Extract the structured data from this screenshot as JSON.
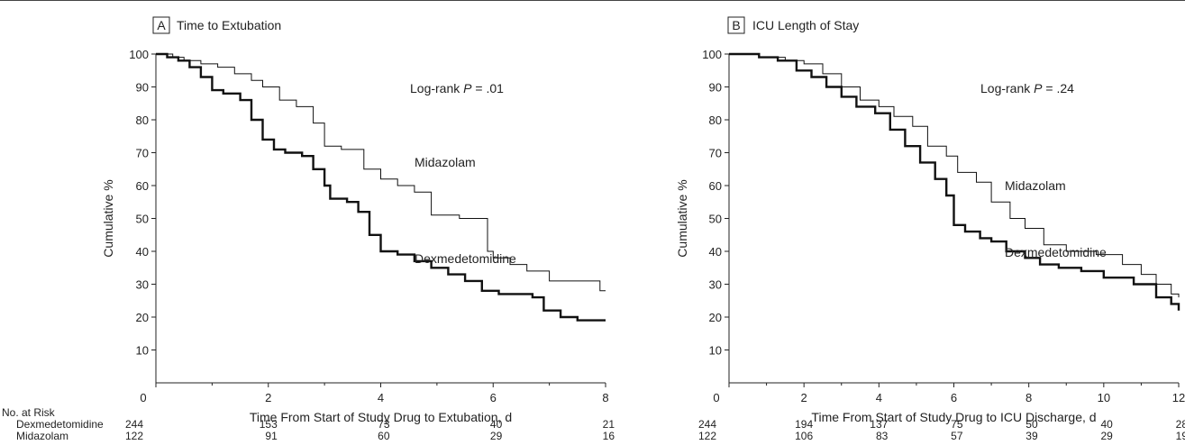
{
  "chart_data": [
    {
      "type": "line",
      "panel_letter": "A",
      "title": "Time to Extubation",
      "annotation_prefix": "Log-rank",
      "annotation_p": "P",
      "annotation_value": " = .01",
      "xlabel": "Time From Start of Study Drug to Extubation, d",
      "ylabel": "Cumulative %",
      "xlim": [
        0,
        8
      ],
      "ylim": [
        0,
        100
      ],
      "x_ticks": [
        0,
        2,
        4,
        6,
        8
      ],
      "y_ticks": [
        10,
        20,
        30,
        40,
        50,
        60,
        70,
        80,
        90,
        100
      ],
      "grid": false,
      "step": true,
      "series": [
        {
          "name": "Midazolam",
          "x": [
            0,
            0.3,
            0.5,
            0.8,
            1.1,
            1.4,
            1.7,
            1.9,
            2.2,
            2.5,
            2.8,
            3.0,
            3.3,
            3.7,
            4.0,
            4.3,
            4.6,
            4.9,
            5.4,
            5.9,
            6.0,
            6.3,
            6.6,
            7.0,
            7.3,
            7.6,
            7.9,
            8.0
          ],
          "y": [
            100,
            99,
            98,
            97,
            96,
            94,
            92,
            90,
            86,
            84,
            79,
            72,
            71,
            65,
            62,
            60,
            58,
            51,
            50,
            40,
            38,
            36,
            34,
            31,
            31,
            31,
            28,
            28
          ]
        },
        {
          "name": "Dexmedetomidine",
          "x": [
            0,
            0.2,
            0.4,
            0.6,
            0.8,
            1.0,
            1.2,
            1.5,
            1.7,
            1.9,
            2.1,
            2.3,
            2.6,
            2.8,
            3.0,
            3.1,
            3.4,
            3.6,
            3.8,
            4.0,
            4.3,
            4.6,
            4.9,
            5.2,
            5.5,
            5.8,
            6.1,
            6.4,
            6.7,
            6.9,
            7.2,
            7.5,
            8.0
          ],
          "y": [
            100,
            99,
            98,
            96,
            93,
            89,
            88,
            86,
            80,
            74,
            71,
            70,
            69,
            65,
            60,
            56,
            55,
            52,
            45,
            40,
            39,
            37,
            35,
            33,
            31,
            28,
            27,
            27,
            26,
            22,
            20,
            19,
            19
          ]
        }
      ],
      "labels": {
        "upper": "Midazolam",
        "lower": "Dexmedetomidine"
      }
    },
    {
      "type": "line",
      "panel_letter": "B",
      "title": "ICU Length of Stay",
      "annotation_prefix": "Log-rank",
      "annotation_p": "P",
      "annotation_value": " = .24",
      "xlabel": "Time From Start of Study Drug to ICU Discharge, d",
      "ylabel": "Cumulative %",
      "xlim": [
        0,
        12
      ],
      "ylim": [
        0,
        100
      ],
      "x_ticks": [
        0,
        2,
        4,
        6,
        8,
        10,
        12
      ],
      "y_ticks": [
        10,
        20,
        30,
        40,
        50,
        60,
        70,
        80,
        90,
        100
      ],
      "grid": false,
      "step": true,
      "series": [
        {
          "name": "Midazolam",
          "x": [
            0,
            0.8,
            1.5,
            2.0,
            2.5,
            3.0,
            3.5,
            4.0,
            4.4,
            4.9,
            5.3,
            5.8,
            6.1,
            6.6,
            7.0,
            7.5,
            7.9,
            8.4,
            9.0,
            9.8,
            10.5,
            11.0,
            11.4,
            11.8,
            12.0
          ],
          "y": [
            100,
            99,
            98,
            97,
            94,
            90,
            86,
            84,
            81,
            78,
            72,
            69,
            64,
            61,
            55,
            50,
            47,
            42,
            40,
            39,
            36,
            33,
            30,
            27,
            26
          ]
        },
        {
          "name": "Dexmedetomidine",
          "x": [
            0,
            0.8,
            1.3,
            1.8,
            2.2,
            2.6,
            3.0,
            3.4,
            3.9,
            4.3,
            4.7,
            5.1,
            5.5,
            5.8,
            6.0,
            6.3,
            6.7,
            7.0,
            7.4,
            7.9,
            8.3,
            8.8,
            9.4,
            10.0,
            10.8,
            11.4,
            11.8,
            12.0
          ],
          "y": [
            100,
            99,
            98,
            95,
            93,
            90,
            87,
            84,
            82,
            77,
            72,
            67,
            62,
            57,
            48,
            46,
            44,
            43,
            40,
            38,
            36,
            35,
            34,
            32,
            30,
            26,
            24,
            22
          ]
        }
      ],
      "labels": {
        "upper": "Midazolam",
        "lower": "Dexmedetomidine"
      }
    }
  ],
  "risk_table": {
    "header": "No. at Risk",
    "rows": [
      {
        "label": "Dexmedetomidine",
        "a": [
          "244",
          "153",
          "73",
          "40",
          "21"
        ],
        "b": [
          "244",
          "194",
          "137",
          "75",
          "50",
          "40",
          "28"
        ]
      },
      {
        "label": "Midazolam",
        "a": [
          "122",
          "91",
          "60",
          "29",
          "16"
        ],
        "b": [
          "122",
          "106",
          "83",
          "57",
          "39",
          "29",
          "19"
        ]
      }
    ]
  }
}
